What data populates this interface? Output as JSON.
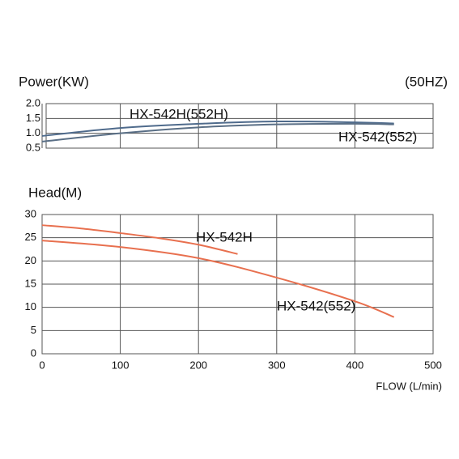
{
  "chart_data": [
    {
      "type": "line",
      "ylabel": "Power(KW)",
      "annotation": "(50HZ)",
      "xlim": [
        0,
        500
      ],
      "xticks": [
        0,
        100,
        200,
        300,
        400,
        500
      ],
      "xtick_labels": false,
      "ylim": [
        0.5,
        2.0
      ],
      "yticks": [
        0.5,
        {
          "value": 1.0,
          "label": "1.0"
        },
        1.5,
        {
          "value": 2.0,
          "label": "2.0"
        }
      ],
      "grid": true,
      "x": [
        0,
        100,
        200,
        300,
        400,
        450
      ],
      "series": [
        {
          "name": "HX-542H(552H)",
          "color": "#4f6b8c",
          "values": [
            0.91,
            1.18,
            1.32,
            1.4,
            1.37,
            1.33
          ]
        },
        {
          "name": "HX-542(552)",
          "color": "#5a6f86",
          "values": [
            0.72,
            1.0,
            1.2,
            1.3,
            1.32,
            1.3
          ]
        }
      ]
    },
    {
      "type": "line",
      "ylabel": "Head(M)",
      "xlabel": "FLOW (L/min)",
      "xlim": [
        0,
        500
      ],
      "xticks": [
        0,
        100,
        200,
        300,
        400,
        500
      ],
      "xtick_labels": true,
      "ylim": [
        0,
        30
      ],
      "yticks": [
        0,
        5,
        10,
        15,
        20,
        25,
        30
      ],
      "grid": true,
      "series": [
        {
          "name": "HX-542H",
          "color": "#e8704f",
          "x": [
            0,
            50,
            100,
            150,
            200,
            250
          ],
          "values": [
            27.7,
            27.0,
            26.0,
            24.9,
            23.5,
            21.5
          ]
        },
        {
          "name": "HX-542(552)",
          "color": "#e8704f",
          "x": [
            0,
            100,
            200,
            300,
            400,
            450
          ],
          "values": [
            24.4,
            23.0,
            20.6,
            16.4,
            11.3,
            7.9
          ]
        }
      ]
    }
  ]
}
